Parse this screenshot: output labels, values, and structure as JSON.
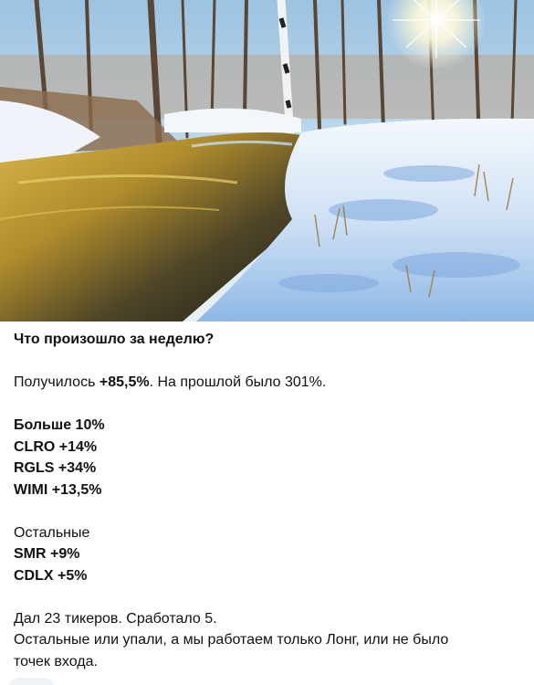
{
  "post": {
    "image": {
      "icon": "winter-river-photo",
      "colors": {
        "sky": "#c9ddeb",
        "snow": "#e8f1fb",
        "snow_shadow": "#7fb0e3",
        "water_gold": "#c9a434",
        "water_dark": "#2b2a22",
        "trees": "#5e4a37"
      }
    },
    "heading": "Что произошло за неделю?",
    "result": {
      "prefix": "Получилось ",
      "value": "+85,5%",
      "suffix": ". На прошлой было 301%."
    },
    "group1": {
      "title": "Больше 10%",
      "items": [
        "CLRO +14%",
        "RGLS +34%",
        "WIMI +13,5%"
      ]
    },
    "group2": {
      "title": "Остальные",
      "items": [
        "SMR +9%",
        "CDLX +5%"
      ]
    },
    "summary": {
      "line1": "Дал 23 тикеров. Сработало 5.",
      "line2": "Остальные или упали, а мы работаем  только Лонг, или не было",
      "line3": "точек входа."
    }
  }
}
